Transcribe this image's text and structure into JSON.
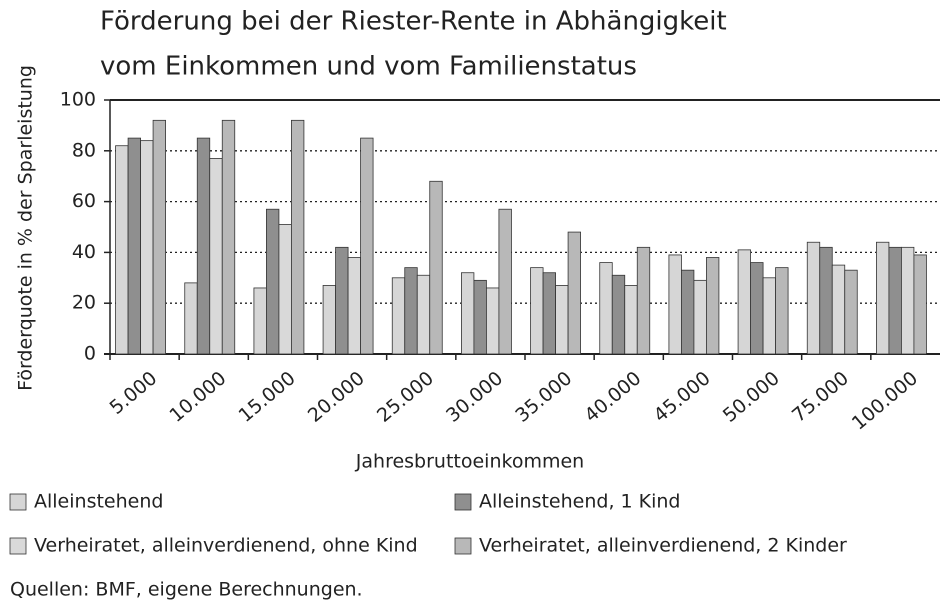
{
  "chart_data": {
    "type": "bar",
    "title": [
      "Förderung bei der Riester-Rente in Abhängigkeit",
      "vom Einkommen und vom Familienstatus"
    ],
    "y_label": "Förderquote in % der Sparleistung",
    "x_label": "Jahresbruttoeinkommen",
    "categories": [
      "5.000",
      "10.000",
      "15.000",
      "20.000",
      "25.000",
      "30.000",
      "35.000",
      "40.000",
      "45.000",
      "50.000",
      "75.000",
      "100.000"
    ],
    "series": [
      {
        "name": "Alleinstehend",
        "color": "#d6d6d6",
        "values": [
          82,
          28,
          26,
          27,
          30,
          32,
          34,
          36,
          39,
          41,
          44,
          44
        ]
      },
      {
        "name": "Alleinstehend, 1 Kind",
        "color": "#8f8f8f",
        "values": [
          85,
          85,
          57,
          42,
          34,
          29,
          32,
          31,
          33,
          36,
          42,
          42
        ]
      },
      {
        "name": "Verheiratet, alleinverdienend, ohne Kind",
        "color": "#d9d9d9",
        "values": [
          84,
          77,
          51,
          38,
          31,
          26,
          27,
          27,
          29,
          30,
          35,
          42
        ]
      },
      {
        "name": "Verheiratet, alleinverdienend, 2 Kinder",
        "color": "#b8b8b8",
        "values": [
          92,
          92,
          92,
          85,
          68,
          57,
          48,
          42,
          38,
          34,
          33,
          39
        ]
      }
    ],
    "ylim": [
      0,
      100
    ],
    "yticks": [
      0,
      20,
      40,
      60,
      80,
      100
    ],
    "grid": true,
    "source": "Quellen: BMF, eigene Berechnungen."
  }
}
